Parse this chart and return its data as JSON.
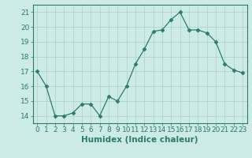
{
  "x": [
    0,
    1,
    2,
    3,
    4,
    5,
    6,
    7,
    8,
    9,
    10,
    11,
    12,
    13,
    14,
    15,
    16,
    17,
    18,
    19,
    20,
    21,
    22,
    23
  ],
  "y": [
    17.0,
    16.0,
    14.0,
    14.0,
    14.2,
    14.8,
    14.8,
    14.0,
    15.3,
    15.0,
    16.0,
    17.5,
    18.5,
    19.7,
    19.8,
    20.5,
    21.0,
    19.8,
    19.8,
    19.6,
    19.0,
    17.5,
    17.1,
    16.9
  ],
  "line_color": "#2d7b6e",
  "marker": "D",
  "markersize": 2.5,
  "bg_color": "#cceae6",
  "grid_color": "#aacfca",
  "xlabel": "Humidex (Indice chaleur)",
  "ylim": [
    13.5,
    21.5
  ],
  "xlim": [
    -0.5,
    23.5
  ],
  "yticks": [
    14,
    15,
    16,
    17,
    18,
    19,
    20,
    21
  ],
  "xticks": [
    0,
    1,
    2,
    3,
    4,
    5,
    6,
    7,
    8,
    9,
    10,
    11,
    12,
    13,
    14,
    15,
    16,
    17,
    18,
    19,
    20,
    21,
    22,
    23
  ],
  "tick_color": "#2d7b6e",
  "label_color": "#2d7b6e",
  "font_size_axis": 6.5,
  "font_size_label": 7.5
}
